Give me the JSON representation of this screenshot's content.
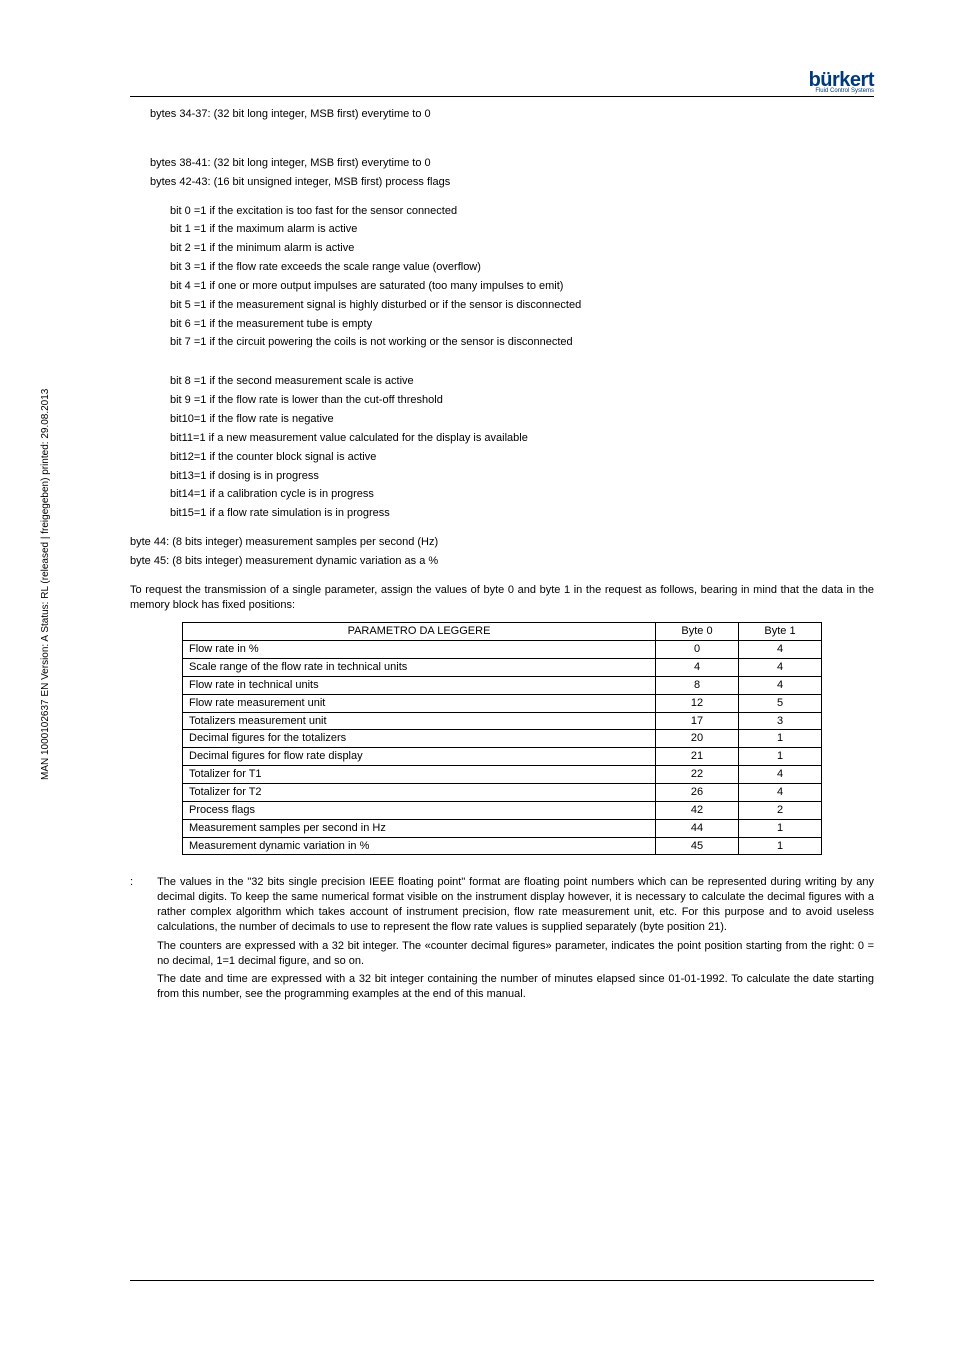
{
  "side_text": "MAN 1000102637 EN Version: A Status: RL (released | freigegeben) printed: 29.08.2013",
  "logo": {
    "brand": "burkert",
    "tagline": "Fluid Control Systems"
  },
  "lines": {
    "l1": "bytes 34-37: (32 bit long integer, MSB first) everytime to 0",
    "l2": "bytes 38-41: (32 bit long integer, MSB first) everytime to 0",
    "l3": "bytes 42-43: (16 bit unsigned integer, MSB first) process flags",
    "b0": "bit 0 =1 if the excitation is too fast for the sensor connected",
    "b1": "bit 1 =1 if the maximum alarm is active",
    "b2": "bit 2 =1 if the minimum alarm is active",
    "b3": "bit 3 =1 if the flow rate exceeds the scale range value (overflow)",
    "b4": "bit 4 =1 if one or more output impulses are saturated (too many impulses to emit)",
    "b5": "bit 5 =1 if the measurement signal is highly disturbed or if the sensor is disconnected",
    "b6": "bit 6 =1 if the measurement tube is empty",
    "b7": "bit 7 =1 if the circuit powering the coils is not working or the sensor is disconnected",
    "b8": "bit 8 =1 if the second measurement scale is active",
    "b9": "bit 9 =1 if the flow rate is lower than the cut-off threshold",
    "b10": "bit10=1 if the flow rate is negative",
    "b11": "bit11=1 if a new measurement value calculated for the display is available",
    "b12": "bit12=1 if the counter block signal is active",
    "b13": "bit13=1 if dosing is in progress",
    "b14": "bit14=1 if a calibration cycle is in progress",
    "b15": "bit15=1 if a flow rate simulation is in progress",
    "l44": "byte  44: (8 bits integer) measurement samples per second (Hz)",
    "l45": "byte  45: (8 bits integer) measurement dynamic variation as a %",
    "intro": "To request the transmission of a single parameter, assign the values of byte 0 and byte 1 in the request as follows, bearing in mind that the data in the memory block has fixed positions:"
  },
  "table": {
    "headers": {
      "c0": "PARAMETRO DA LEGGERE",
      "c1": "Byte 0",
      "c2": "Byte 1"
    },
    "rows": [
      {
        "label": "Flow rate in %",
        "b0": "0",
        "b1": "4"
      },
      {
        "label": "Scale range of the flow rate in technical units",
        "b0": "4",
        "b1": "4"
      },
      {
        "label": "Flow rate in technical units",
        "b0": "8",
        "b1": "4"
      },
      {
        "label": "Flow rate measurement unit",
        "b0": "12",
        "b1": "5"
      },
      {
        "label": "Totalizers measurement unit",
        "b0": "17",
        "b1": "3"
      },
      {
        "label": "Decimal figures for the totalizers",
        "b0": "20",
        "b1": "1"
      },
      {
        "label": "Decimal figures for flow rate display",
        "b0": "21",
        "b1": "1"
      },
      {
        "label": "Totalizer for T1",
        "b0": "22",
        "b1": "4"
      },
      {
        "label": "Totalizer for T2",
        "b0": "26",
        "b1": "4"
      },
      {
        "label": "Process flags",
        "b0": "42",
        "b1": "2"
      },
      {
        "label": "Measurement samples per second in Hz",
        "b0": "44",
        "b1": "1"
      },
      {
        "label": "Measurement dynamic variation in %",
        "b0": "45",
        "b1": "1"
      }
    ]
  },
  "note": {
    "marker": ":",
    "p1": "The values in the \"32 bits single precision IEEE floating point\" format are floating point numbers which can be represented during writing by any decimal digits. To keep the same numerical format visible on the instrument display however, it is necessary to calculate the decimal figures with a rather complex algorithm which takes account of instrument precision, flow rate measurement unit, etc. For this purpose and to avoid useless calculations, the number of decimals to use to represent the flow rate values is supplied separately (byte position 21).",
    "p2": "The counters are expressed with a 32 bit integer. The «counter decimal figures» parameter, indicates the point position starting from the right: 0 = no decimal, 1=1 decimal figure, and so on.",
    "p3": "The date and time are expressed with a 32 bit integer containing the number of minutes elapsed since 01-01-1992. To calculate the date starting from this number, see the programming examples at the end of this manual."
  }
}
